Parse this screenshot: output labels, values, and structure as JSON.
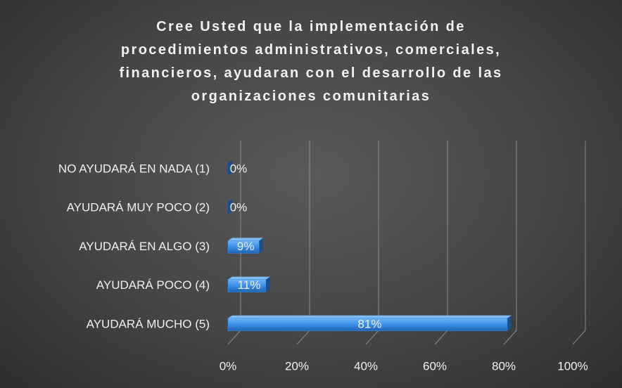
{
  "chart_data": {
    "type": "bar",
    "orientation": "horizontal",
    "title": "Cree Usted que la implementación de procedimientos administrativos, comerciales, financieros, ayudaran con el desarrollo de las organizaciones comunitarias",
    "categories": [
      "NO AYUDARÁ EN NADA (1)",
      "AYUDARÁ MUY POCO (2)",
      "AYUDARÁ EN ALGO (3)",
      "AYUDARÁ POCO (4)",
      "AYUDARÁ MUCHO (5)"
    ],
    "values": [
      0,
      0,
      9,
      11,
      81
    ],
    "value_labels": [
      "0%",
      "0%",
      "9%",
      "11%",
      "81%"
    ],
    "color": "#3a8ee6",
    "xlim": [
      0,
      100
    ],
    "xticks": [
      {
        "value": 0,
        "label": "0%"
      },
      {
        "value": 20,
        "label": "20%"
      },
      {
        "value": 40,
        "label": "40%"
      },
      {
        "value": 60,
        "label": "60%"
      },
      {
        "value": 80,
        "label": "80%"
      },
      {
        "value": 100,
        "label": "100%"
      }
    ],
    "grid": true
  }
}
